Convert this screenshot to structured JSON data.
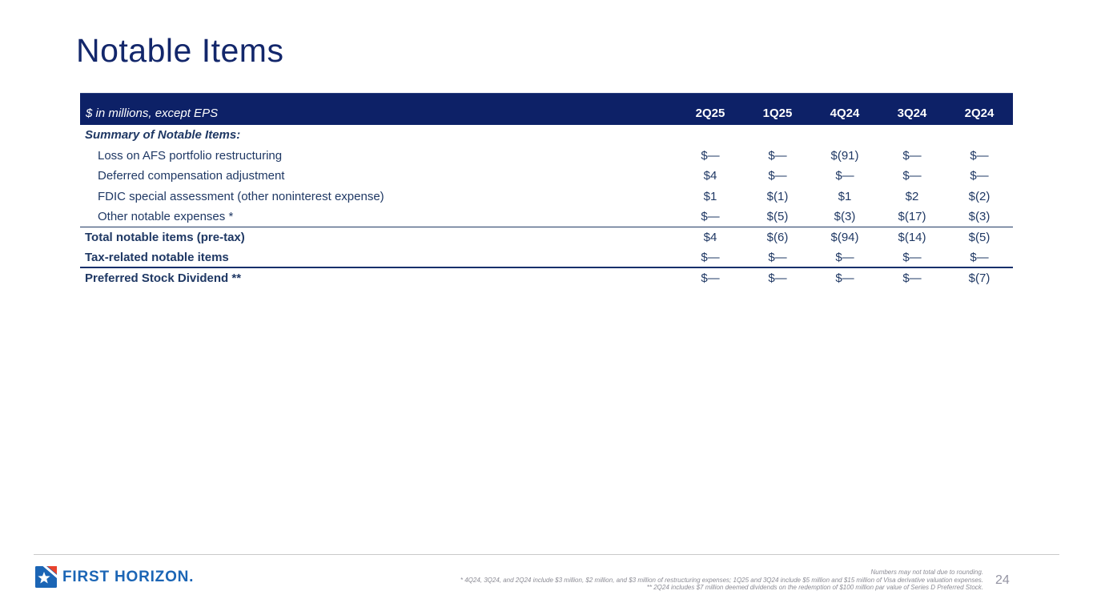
{
  "slide": {
    "title": "Notable Items",
    "page_number": "24"
  },
  "table": {
    "unit_label": "$ in millions, except EPS",
    "columns": [
      "2Q25",
      "1Q25",
      "4Q24",
      "3Q24",
      "2Q24"
    ],
    "rows": [
      {
        "label": "Summary of Notable Items:",
        "style": "section",
        "values": [
          "",
          "",
          "",
          "",
          ""
        ]
      },
      {
        "label": "Loss on AFS portfolio restructuring",
        "style": "item",
        "values": [
          "$—",
          "$—",
          "$(91)",
          "$—",
          "$—"
        ]
      },
      {
        "label": "Deferred compensation adjustment",
        "style": "item",
        "values": [
          "$4",
          "$—",
          "$—",
          "$—",
          "$—"
        ]
      },
      {
        "label": "FDIC special assessment (other noninterest expense)",
        "style": "item",
        "values": [
          "$1",
          "$(1)",
          "$1",
          "$2",
          "$(2)"
        ]
      },
      {
        "label": "Other notable expenses *",
        "style": "item",
        "values": [
          "$—",
          "$(5)",
          "$(3)",
          "$(17)",
          "$(3)"
        ],
        "border_bottom": "thin"
      },
      {
        "label": "Total notable items (pre-tax)",
        "style": "total",
        "values": [
          "$4",
          "$(6)",
          "$(94)",
          "$(14)",
          "$(5)"
        ]
      },
      {
        "label": "Tax-related notable items",
        "style": "total",
        "values": [
          "$—",
          "$—",
          "$—",
          "$—",
          "$—"
        ],
        "border_bottom": "thick"
      },
      {
        "label": "Preferred Stock Dividend **",
        "style": "total",
        "values": [
          "$—",
          "$—",
          "$—",
          "$—",
          "$(7)"
        ]
      }
    ]
  },
  "footer": {
    "logo_text": "FIRST HORIZON.",
    "footnotes": [
      "Numbers may not total due to rounding.",
      "* 4Q24, 3Q24, and 2Q24 include $3 million, $2 million, and $3 million of restructuring expenses; 1Q25 and 3Q24 include $5 million and $15 million of Visa derivative valuation expenses.",
      "** 2Q24 includes $7 million deemed dividends on the redemption of $100 million par value of Series D Preferred Stock."
    ]
  },
  "colors": {
    "header_bg": "#0d2167",
    "body_navy": "#1f3864",
    "title_navy": "#13276b",
    "logo_blue": "#1b65b5",
    "logo_red": "#e8432d",
    "footnote_gray": "#8b8b94"
  }
}
